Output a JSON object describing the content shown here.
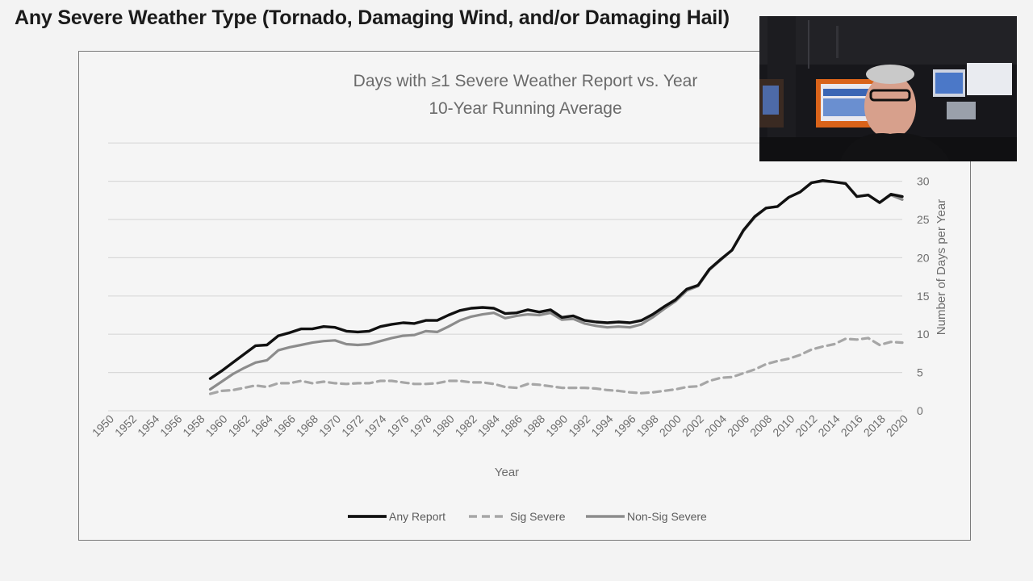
{
  "slide": {
    "title": "Any Severe Weather Type (Tornado, Damaging Wind, and/or Damaging Hail)"
  },
  "colors": {
    "any_report": "#111111",
    "sig_severe": "#a6a6a6",
    "non_sig_severe": "#8c8c8c",
    "gridline": "#d9d9d9"
  },
  "chart_data": {
    "type": "line",
    "title": "Days with ≥1 Severe Weather Report vs. Year",
    "subtitle": "10-Year Running Average",
    "xlabel": "Year",
    "ylabel": "Number of Days per Year",
    "ylim": [
      0,
      35
    ],
    "xlim": [
      1950,
      2020
    ],
    "yticks": [
      "0",
      "5",
      "10",
      "15",
      "20",
      "25",
      "30"
    ],
    "xticks": [
      "1950",
      "1952",
      "1954",
      "1956",
      "1958",
      "1960",
      "1962",
      "1964",
      "1966",
      "1968",
      "1970",
      "1972",
      "1974",
      "1976",
      "1978",
      "1980",
      "1982",
      "1984",
      "1986",
      "1988",
      "1990",
      "1992",
      "1994",
      "1996",
      "1998",
      "2000",
      "2002",
      "2004",
      "2006",
      "2008",
      "2010",
      "2012",
      "2014",
      "2016",
      "2018",
      "2020"
    ],
    "y_axis_side": "right",
    "grid": true,
    "legend_position": "bottom",
    "x": [
      1959,
      1960,
      1961,
      1962,
      1963,
      1964,
      1965,
      1966,
      1967,
      1968,
      1969,
      1970,
      1971,
      1972,
      1973,
      1974,
      1975,
      1976,
      1977,
      1978,
      1979,
      1980,
      1981,
      1982,
      1983,
      1984,
      1985,
      1986,
      1987,
      1988,
      1989,
      1990,
      1991,
      1992,
      1993,
      1994,
      1995,
      1996,
      1997,
      1998,
      1999,
      2000,
      2001,
      2002,
      2003,
      2004,
      2005,
      2006,
      2007,
      2008,
      2009,
      2010,
      2011,
      2012,
      2013,
      2014,
      2015,
      2016,
      2017,
      2018,
      2019,
      2020
    ],
    "series": [
      {
        "name": "Any Report",
        "style": "solid",
        "values": [
          4.2,
          5.2,
          6.3,
          7.4,
          8.5,
          8.6,
          9.8,
          10.2,
          10.7,
          10.7,
          11.0,
          10.9,
          10.4,
          10.3,
          10.4,
          11.0,
          11.3,
          11.5,
          11.4,
          11.8,
          11.8,
          12.5,
          13.1,
          13.4,
          13.5,
          13.4,
          12.7,
          12.8,
          13.2,
          12.9,
          13.2,
          12.2,
          12.4,
          11.8,
          11.6,
          11.5,
          11.6,
          11.5,
          11.8,
          12.6,
          13.6,
          14.5,
          15.9,
          16.4,
          18.5,
          19.8,
          21.0,
          23.6,
          25.4,
          26.5,
          26.7,
          27.9,
          28.6,
          29.8,
          30.1,
          29.9,
          29.7,
          28.0,
          28.2,
          27.2,
          28.3,
          28.0
        ]
      },
      {
        "name": "Sig Severe",
        "style": "dashed",
        "values": [
          2.2,
          2.6,
          2.7,
          3.0,
          3.3,
          3.1,
          3.6,
          3.6,
          3.9,
          3.6,
          3.8,
          3.6,
          3.5,
          3.6,
          3.6,
          3.9,
          3.9,
          3.7,
          3.5,
          3.5,
          3.6,
          3.9,
          3.9,
          3.7,
          3.7,
          3.5,
          3.1,
          3.0,
          3.5,
          3.4,
          3.2,
          3.0,
          3.0,
          3.0,
          2.9,
          2.7,
          2.6,
          2.4,
          2.3,
          2.4,
          2.6,
          2.8,
          3.1,
          3.2,
          3.9,
          4.3,
          4.4,
          4.9,
          5.4,
          6.1,
          6.5,
          6.8,
          7.3,
          8.0,
          8.4,
          8.7,
          9.4,
          9.3,
          9.5,
          8.6,
          9.0,
          8.9
        ]
      },
      {
        "name": "Non-Sig Severe",
        "style": "solid",
        "values": [
          2.8,
          3.8,
          4.8,
          5.6,
          6.3,
          6.6,
          7.9,
          8.3,
          8.6,
          8.9,
          9.1,
          9.2,
          8.7,
          8.6,
          8.7,
          9.1,
          9.5,
          9.8,
          9.9,
          10.4,
          10.3,
          11.0,
          11.8,
          12.3,
          12.6,
          12.8,
          12.1,
          12.4,
          12.6,
          12.5,
          12.8,
          11.9,
          12.0,
          11.4,
          11.1,
          10.9,
          11.0,
          10.9,
          11.3,
          12.2,
          13.3,
          14.3,
          15.7,
          16.3,
          18.4,
          19.7,
          21.0,
          23.5,
          25.3,
          26.5,
          26.7,
          27.9,
          28.6,
          29.8,
          30.0,
          29.9,
          29.7,
          28.0,
          28.2,
          27.2,
          28.2,
          27.6
        ]
      }
    ]
  }
}
